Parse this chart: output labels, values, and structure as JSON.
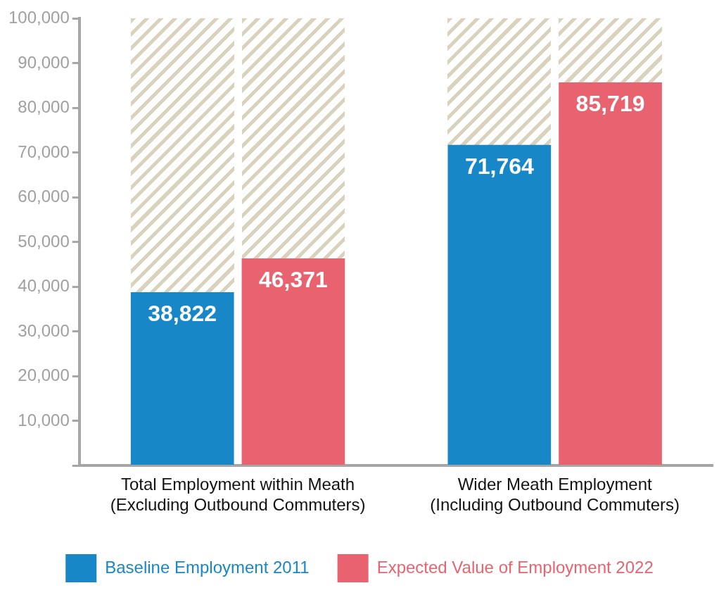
{
  "chart_data": {
    "type": "bar",
    "categories": [
      "Total Employment within Meath\n(Excluding Outbound Commuters)",
      "Wider Meath Employment\n(Including Outbound Commuters)"
    ],
    "series": [
      {
        "name": "Baseline Employment 2011",
        "color": "#1787c7",
        "values": [
          38822,
          71764
        ],
        "value_labels": [
          "38,822",
          "71,764"
        ]
      },
      {
        "name": "Expected Value of Employment 2022",
        "color": "#e8636f",
        "values": [
          46371,
          85719
        ],
        "value_labels": [
          "46,371",
          "85,719"
        ]
      }
    ],
    "ylim": [
      0,
      100000
    ],
    "yticks": [
      {
        "value": 0,
        "label": null
      },
      {
        "value": 10000,
        "label": "10,000"
      },
      {
        "value": 20000,
        "label": "20,000"
      },
      {
        "value": 30000,
        "label": "30,000"
      },
      {
        "value": 40000,
        "label": "40,000"
      },
      {
        "value": 50000,
        "label": "50,000"
      },
      {
        "value": 60000,
        "label": "60,000"
      },
      {
        "value": 70000,
        "label": "70,000"
      },
      {
        "value": 80000,
        "label": "80,000"
      },
      {
        "value": 90000,
        "label": "90,000"
      },
      {
        "value": 100000,
        "label": "100,000"
      }
    ],
    "grid": false,
    "legend": "bottom"
  }
}
